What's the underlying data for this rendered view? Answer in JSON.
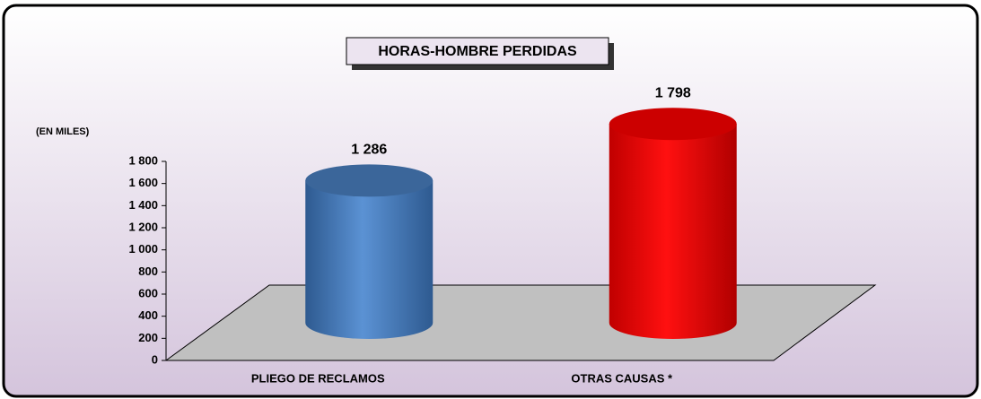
{
  "chart_data": {
    "type": "bar",
    "title": "HORAS-HOMBRE PERDIDAS",
    "y_label": "(EN MILES)",
    "categories": [
      "PLIEGO DE RECLAMOS",
      "OTRAS CAUSAS *"
    ],
    "values": [
      1286,
      1798
    ],
    "value_labels": [
      "1 286",
      "1 798"
    ],
    "colors": [
      "#4a7fc0",
      "#ff0000"
    ],
    "ylim": [
      0,
      1800
    ],
    "yticks": [
      0,
      200,
      400,
      600,
      800,
      {
        "value": 1000,
        "label": "1 000"
      },
      {
        "value": 1200,
        "label": "1 200"
      },
      {
        "value": 1400,
        "label": "1 400"
      },
      {
        "value": 1600,
        "label": "1 600"
      },
      {
        "value": 1800,
        "label": "1 800"
      }
    ]
  }
}
